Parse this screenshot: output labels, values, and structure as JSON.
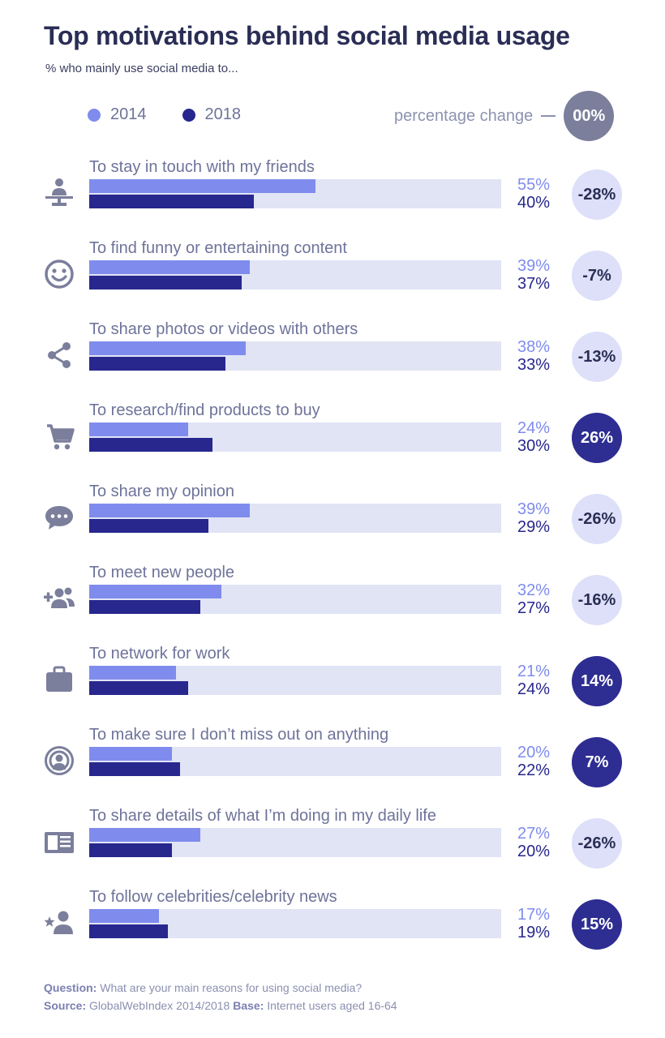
{
  "title": "Top motivations behind social media usage",
  "subtitle": "% who mainly use social media to...",
  "legend": {
    "label_2014": "2014",
    "label_2018": "2018",
    "change_label": "percentage change",
    "change_sample": "00%"
  },
  "colors": {
    "c2014": "#7f8ced",
    "c2018": "#27278e",
    "track": "#e1e4f5",
    "negative_bubble": "#dde0f8",
    "positive_bubble": "#2d2d92",
    "icon": "#7b7f9c"
  },
  "chart_data": {
    "type": "bar",
    "orientation": "horizontal",
    "title": "Top motivations behind social media usage",
    "subtitle": "% who mainly use social media to...",
    "categories": [
      "To stay in touch with my friends",
      "To find funny or entertaining content",
      "To share photos or videos with others",
      "To research/find products to buy",
      "To share my opinion",
      "To meet new people",
      "To network for work",
      "To make sure I don’t miss out on anything",
      "To share details of what I’m doing in my daily life",
      "To follow celebrities/celebrity news"
    ],
    "series": [
      {
        "name": "2014",
        "values": [
          55,
          39,
          38,
          24,
          39,
          32,
          21,
          20,
          27,
          17
        ]
      },
      {
        "name": "2018",
        "values": [
          40,
          37,
          33,
          30,
          29,
          27,
          24,
          22,
          20,
          19
        ]
      }
    ],
    "value_labels_2014": [
      "55%",
      "39%",
      "38%",
      "24%",
      "39%",
      "32%",
      "21%",
      "20%",
      "27%",
      "17%"
    ],
    "value_labels_2018": [
      "40%",
      "37%",
      "33%",
      "30%",
      "29%",
      "27%",
      "24%",
      "22%",
      "20%",
      "19%"
    ],
    "percentage_change": [
      "-28%",
      "-7%",
      "-13%",
      "26%",
      "-26%",
      "-16%",
      "14%",
      "7%",
      "-26%",
      "15%"
    ],
    "icons": [
      "network-person-icon",
      "smiley-icon",
      "share-icon",
      "cart-icon",
      "chat-bubble-icon",
      "add-people-icon",
      "briefcase-icon",
      "podcast-person-icon",
      "news-icon",
      "star-person-icon"
    ]
  },
  "footer": {
    "question_label": "Question:",
    "question_text": "What are your main reasons for using social media?",
    "source_label": "Source:",
    "source_text": "GlobalWebIndex 2014/2018",
    "base_label": "Base:",
    "base_text": "Internet users aged 16-64"
  }
}
